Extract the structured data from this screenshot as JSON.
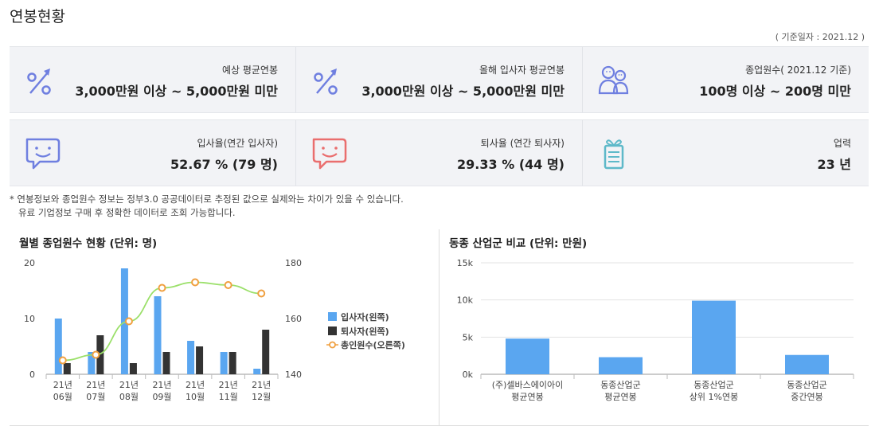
{
  "page_title": "연봉현황",
  "basis_date": "( 기준일자 : 2021.12 )",
  "colors": {
    "purple": "#6f7fe0",
    "red": "#ea6e6e",
    "teal": "#5eb9c9",
    "hire": "#5aa6f0",
    "leave": "#333333",
    "total": "#f0a040",
    "total_line": "#9be06a",
    "bar_blue": "#5aa6f0"
  },
  "stats_row1": [
    {
      "icon": "percent-arrow-icon",
      "label": "예상 평균연봉",
      "value": "3,000만원 이상 ~ 5,000만원 미만"
    },
    {
      "icon": "percent-arrow-icon",
      "label": "올해 입사자 평균연봉",
      "value": "3,000만원 이상 ~ 5,000만원 미만"
    },
    {
      "icon": "people-icon",
      "label": "종업원수( 2021.12 기준)",
      "value": "100명 이상 ~ 200명 미만"
    }
  ],
  "stats_row2": [
    {
      "icon": "smile-chat-icon",
      "label": "입사율(연간 입사자)",
      "value": "52.67 % (79 명)"
    },
    {
      "icon": "smile-chat-icon",
      "label": "퇴사율 (연간 퇴사자)",
      "value": "29.33 % (44 명)"
    },
    {
      "icon": "gift-box-icon",
      "label": "업력",
      "value": "23 년"
    }
  ],
  "notes": [
    "* 연봉정보와 종업원수 정보는 정부3.0 공공데이터로 추정된 값으로 실제와는 차이가 있을 수 있습니다.",
    "유료 기업정보 구매 후 정확한 데이터로 조회 가능합니다."
  ],
  "chart_data": [
    {
      "type": "bar",
      "title": "월별 종업원수 현황 (단위: 명)",
      "categories": [
        [
          "21년",
          "06월"
        ],
        [
          "21년",
          "07월"
        ],
        [
          "21년",
          "08월"
        ],
        [
          "21년",
          "09월"
        ],
        [
          "21년",
          "10월"
        ],
        [
          "21년",
          "11월"
        ],
        [
          "21년",
          "12월"
        ]
      ],
      "series": [
        {
          "name": "입사자(왼쪽)",
          "kind": "bar",
          "axis": "left",
          "values": [
            10,
            4,
            19,
            14,
            6,
            4,
            1
          ]
        },
        {
          "name": "퇴사자(왼쪽)",
          "kind": "bar",
          "axis": "left",
          "values": [
            2,
            7,
            2,
            4,
            5,
            4,
            8
          ]
        },
        {
          "name": "총인원수(오른쪽)",
          "kind": "line",
          "axis": "right",
          "values": [
            145,
            147,
            159,
            171,
            173,
            172,
            169
          ]
        }
      ],
      "y_left": {
        "ticks": [
          "20",
          "10",
          "0"
        ],
        "range": [
          0,
          20
        ]
      },
      "y_right": {
        "ticks": [
          "180",
          "160",
          "140"
        ],
        "range": [
          140,
          180
        ]
      },
      "legend_position": "right",
      "grid": false
    },
    {
      "type": "bar",
      "title": "동종 산업군 비교 (단위: 만원)",
      "categories": [
        [
          "(주)셀바스에이아이",
          "평균연봉"
        ],
        [
          "동종산업군",
          "평균연봉"
        ],
        [
          "동종산업군",
          "상위 1%연봉"
        ],
        [
          "동종산업군",
          "중간연봉"
        ]
      ],
      "values": [
        4800,
        2300,
        9900,
        2600
      ],
      "y_ticks": [
        "15k",
        "10k",
        "5k",
        "0k"
      ],
      "ylim": [
        0,
        15000
      ],
      "grid": true
    }
  ]
}
